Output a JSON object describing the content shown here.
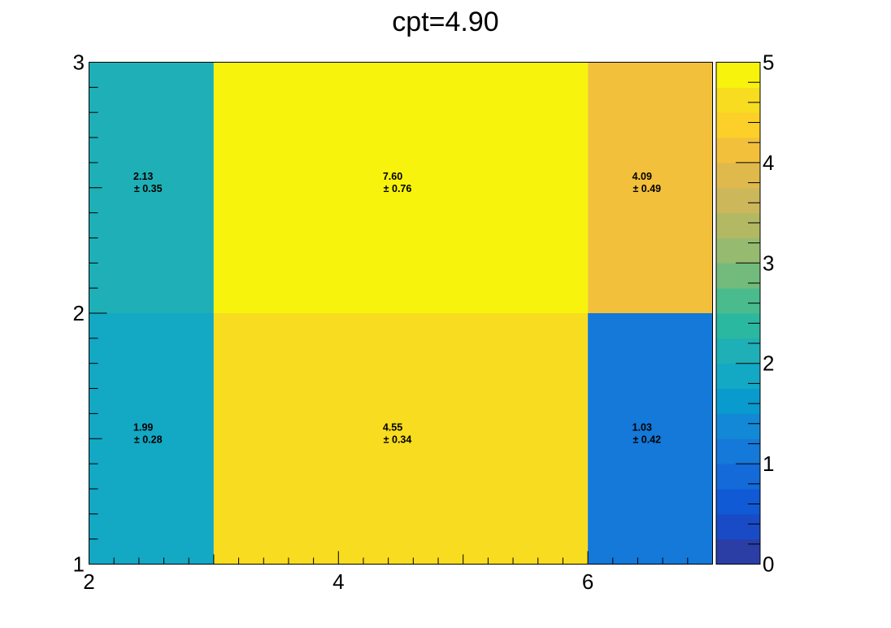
{
  "chart_data": {
    "type": "heatmap",
    "title": "cpt=4.90",
    "xlabel": "",
    "ylabel": "",
    "x_edges": [
      2,
      3,
      6,
      7
    ],
    "y_edges": [
      1,
      2,
      3
    ],
    "xlim": [
      2,
      7
    ],
    "ylim": [
      1,
      3
    ],
    "zlim": [
      0,
      5
    ],
    "x_ticks": [
      "2",
      "4",
      "6"
    ],
    "y_ticks": [
      "1",
      "2",
      "3"
    ],
    "z_ticks": [
      "0",
      "1",
      "2",
      "3",
      "4",
      "5"
    ],
    "cells": [
      {
        "x_bin": 0,
        "y_bin": 0,
        "value": 1.99,
        "label": "1.99",
        "error_label": "± 0.28"
      },
      {
        "x_bin": 1,
        "y_bin": 0,
        "value": 4.55,
        "label": "4.55",
        "error_label": "± 0.34"
      },
      {
        "x_bin": 2,
        "y_bin": 0,
        "value": 1.03,
        "label": "1.03",
        "error_label": "± 0.42"
      },
      {
        "x_bin": 0,
        "y_bin": 1,
        "value": 2.13,
        "label": "2.13",
        "error_label": "± 0.35"
      },
      {
        "x_bin": 1,
        "y_bin": 1,
        "value": 7.6,
        "label": "7.60",
        "error_label": "± 0.76"
      },
      {
        "x_bin": 2,
        "y_bin": 1,
        "value": 4.09,
        "label": "4.09",
        "error_label": "± 0.49"
      }
    ],
    "palette": [
      "#2a3ea6",
      "#1a4bc6",
      "#105ad6",
      "#136ad8",
      "#1479d8",
      "#1388d6",
      "#0a9bce",
      "#13a8c4",
      "#1eb0b6",
      "#2bb8a0",
      "#4abb8c",
      "#72bb7c",
      "#96bb70",
      "#b3b963",
      "#ccb75b",
      "#e0b94c",
      "#f3c03c",
      "#fcd028",
      "#f7dc20",
      "#f8f30c"
    ],
    "colorbar": true,
    "grid": false,
    "legend": "none"
  }
}
